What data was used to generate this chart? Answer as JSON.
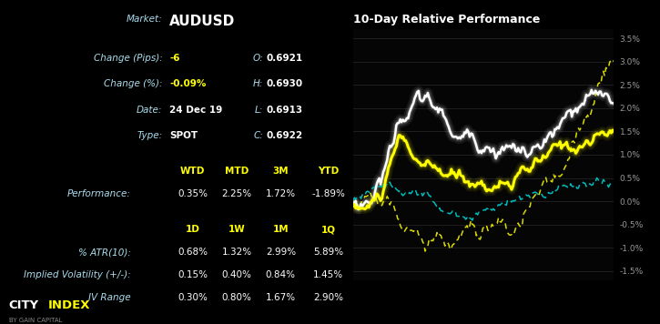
{
  "bg_color": "#000000",
  "title": "10-Day Relative Performance",
  "market": "AUDUSD",
  "change_pips": "-6",
  "change_pct": "-0.09%",
  "date": "24 Dec 19",
  "type_val": "SPOT",
  "O": "0.6921",
  "H": "0.6930",
  "L": "0.6913",
  "C": "0.6922",
  "perf_headers": [
    "WTD",
    "MTD",
    "3M",
    "YTD"
  ],
  "perf_values": [
    "0.35%",
    "2.25%",
    "1.72%",
    "-1.89%"
  ],
  "vol_headers": [
    "1D",
    "1W",
    "1M",
    "1Q"
  ],
  "atr_values": [
    "0.68%",
    "1.32%",
    "2.99%",
    "5.89%"
  ],
  "iv_values": [
    "0.15%",
    "0.40%",
    "0.84%",
    "1.45%"
  ],
  "ivr_values": [
    "0.30%",
    "0.80%",
    "1.67%",
    "2.90%"
  ],
  "yellow": "#ffff00",
  "cyan": "#00bbbb",
  "white": "#ffffff",
  "gray_text": "#888888",
  "label_color": "#aaddee",
  "ylim": [
    -1.7,
    3.7
  ],
  "yticks": [
    -1.5,
    -1.0,
    -0.5,
    0.0,
    0.5,
    1.0,
    1.5,
    2.0,
    2.5,
    3.0,
    3.5
  ],
  "n_points": 200
}
